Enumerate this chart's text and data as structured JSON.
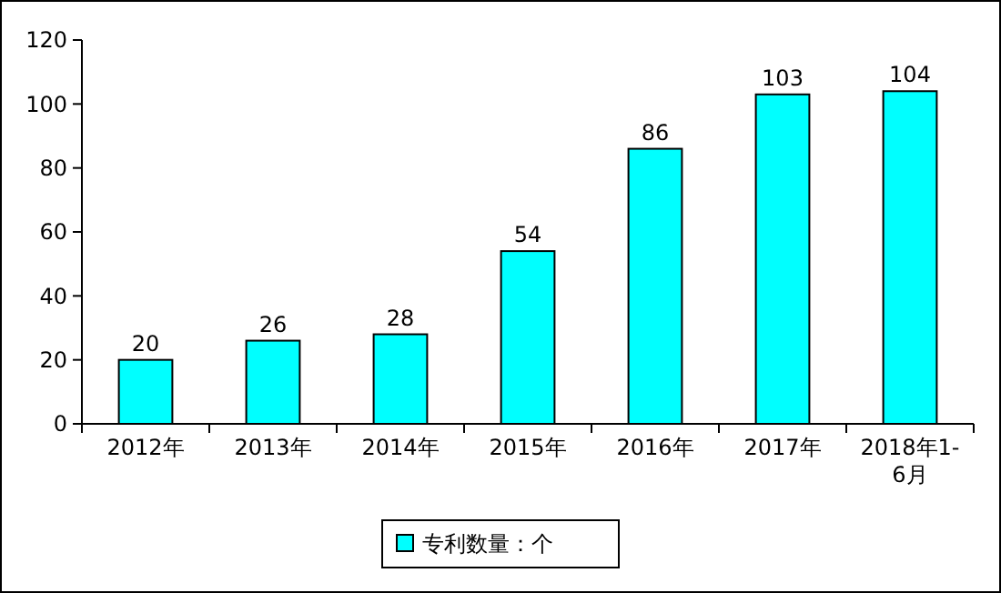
{
  "chart_data": {
    "type": "bar",
    "categories": [
      "2012年",
      "2013年",
      "2014年",
      "2015年",
      "2016年",
      "2017年",
      "2018年1-6月"
    ],
    "series": [
      {
        "name": "专利数量：个",
        "color": "#00ffff",
        "values": [
          20,
          26,
          28,
          54,
          86,
          103,
          104
        ]
      }
    ],
    "ylim": [
      0,
      120
    ],
    "yticks": [
      0,
      20,
      40,
      60,
      80,
      100,
      120
    ],
    "grid": false,
    "legend": "bottom",
    "data_labels": true
  }
}
